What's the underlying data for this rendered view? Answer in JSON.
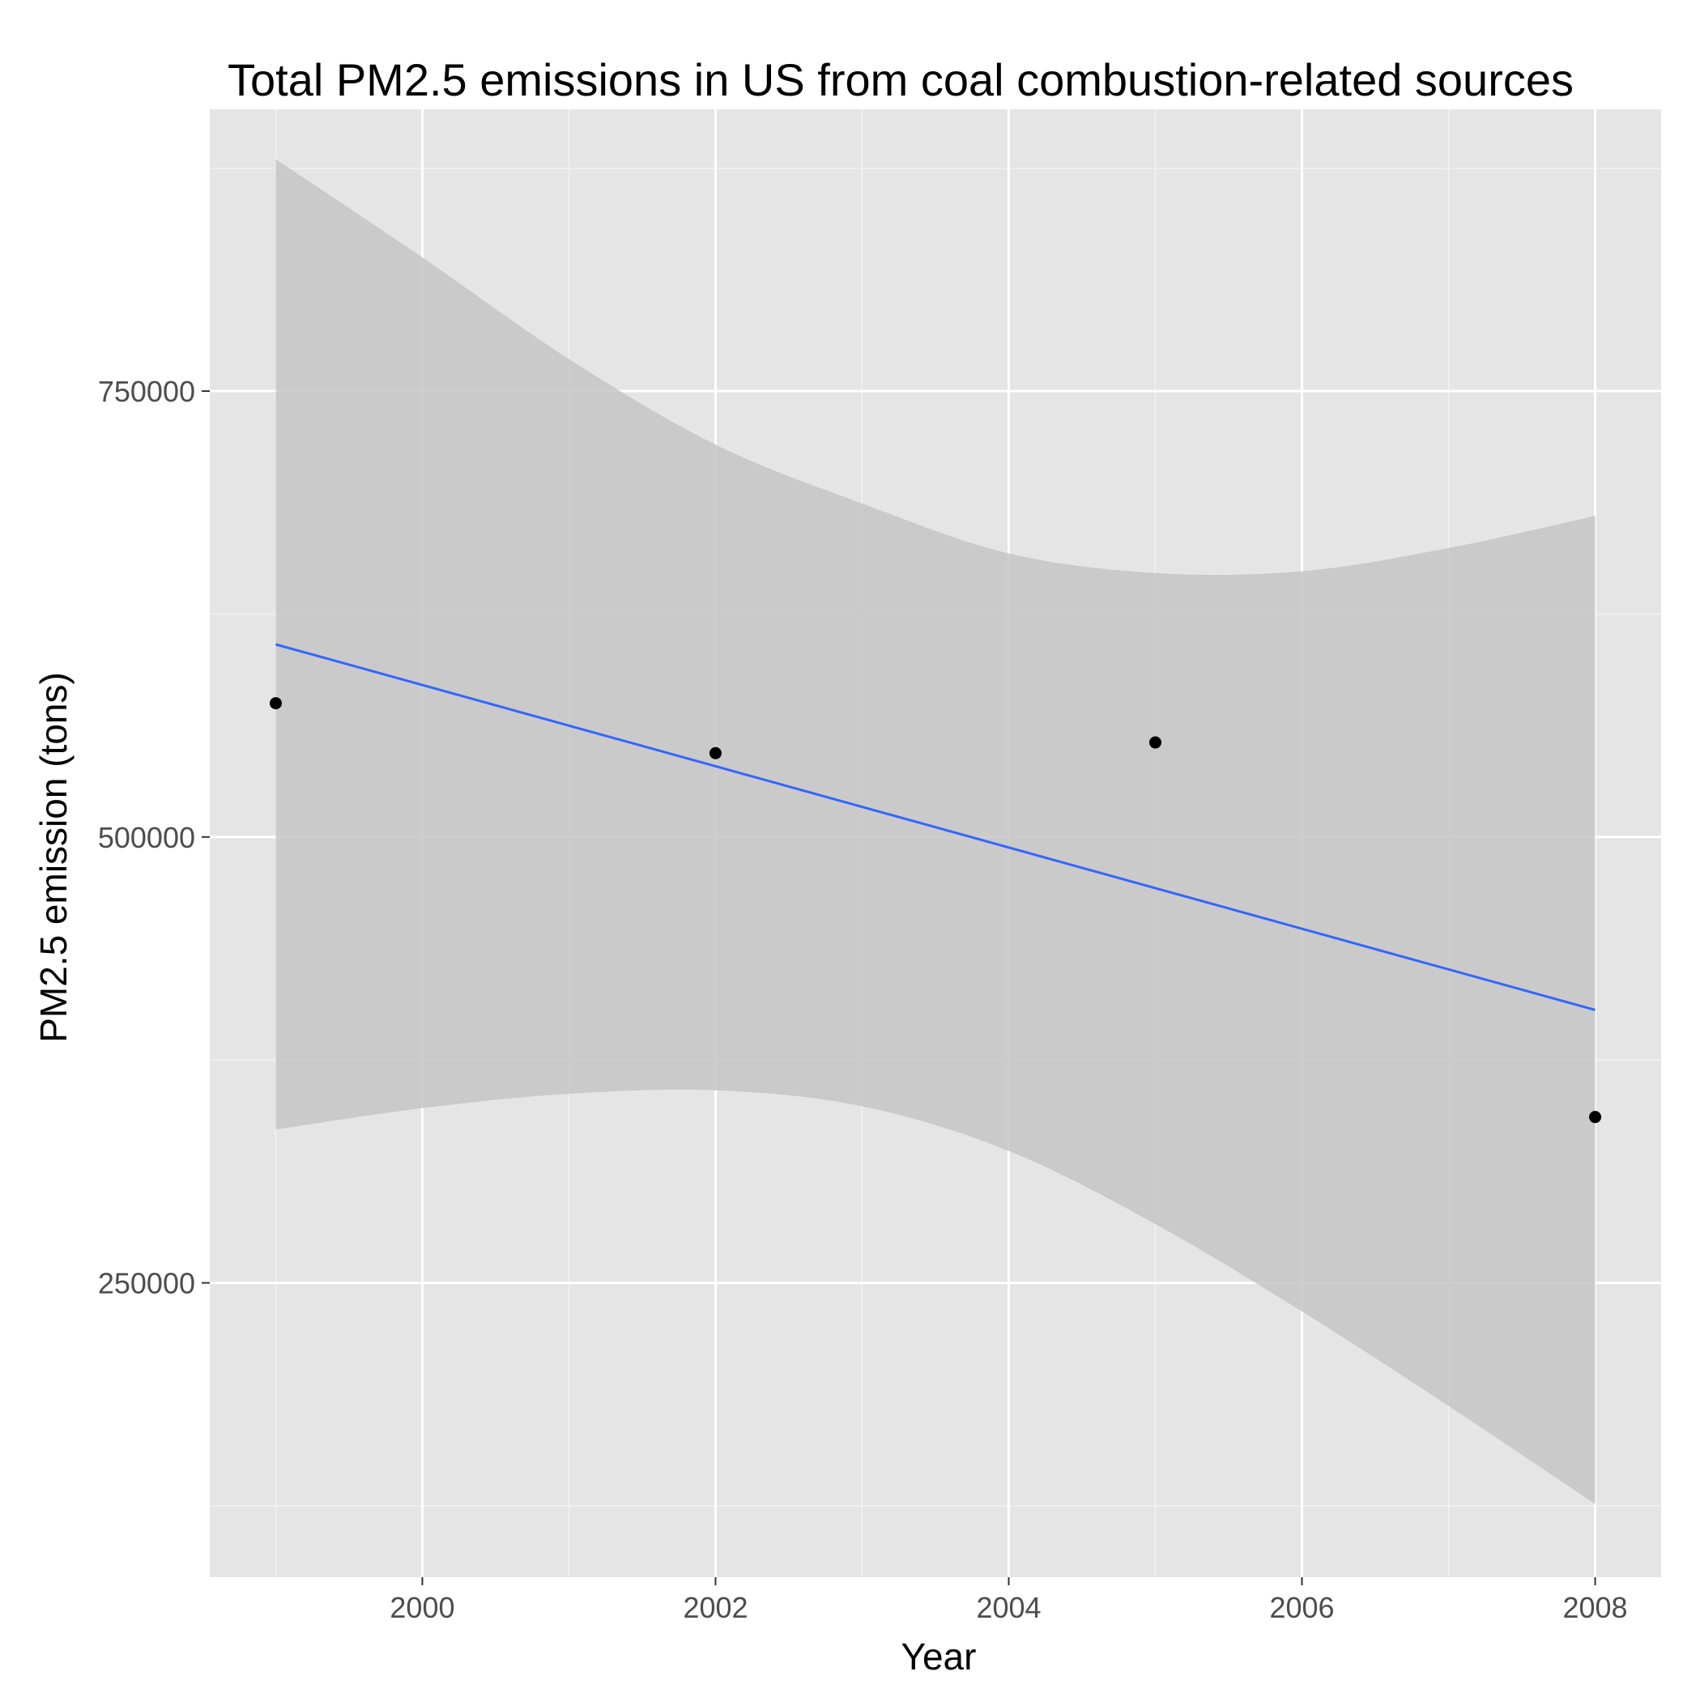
{
  "chart_data": {
    "type": "scatter",
    "title": "Total PM2.5 emissions in US from coal combustion-related sources",
    "xlabel": "Year",
    "ylabel": "PM2.5 emission (tons)",
    "xlim": [
      1998.55,
      2008.45
    ],
    "ylim": [
      85000,
      908000
    ],
    "x_ticks": [
      2000,
      2002,
      2004,
      2006,
      2008
    ],
    "x_tick_labels": [
      "2000",
      "2002",
      "2004",
      "2006",
      "2008"
    ],
    "y_ticks": [
      250000,
      500000,
      750000
    ],
    "y_tick_labels": [
      "250000",
      "500000",
      "750000"
    ],
    "grid": true,
    "legend": "none",
    "points": [
      {
        "x": 1999,
        "y": 575000
      },
      {
        "x": 2002,
        "y": 547000
      },
      {
        "x": 2005,
        "y": 553000
      },
      {
        "x": 2008,
        "y": 343000
      }
    ],
    "fit_line": {
      "method": "linear regression",
      "x": [
        1999,
        2008
      ],
      "y": [
        608000,
        403000
      ]
    },
    "confidence_band": {
      "x": [
        1999,
        2000,
        2001,
        2002,
        2003,
        2004,
        2005,
        2006,
        2007,
        2008
      ],
      "lower": [
        336000,
        348000,
        356000,
        358000,
        349000,
        324000,
        283000,
        234000,
        181000,
        126000
      ],
      "upper": [
        880000,
        825000,
        768000,
        720000,
        687000,
        659000,
        648000,
        649000,
        662000,
        680000
      ]
    },
    "colors": {
      "background": "#ffffff",
      "panel": "#e5e5e5",
      "grid_major": "#ffffff",
      "grid_minor": "#f2f2f2",
      "band": "#c6c6c6",
      "line": "#3366ff",
      "points": "#000000",
      "tick_text": "#4d4d4d",
      "text": "#000000"
    }
  }
}
